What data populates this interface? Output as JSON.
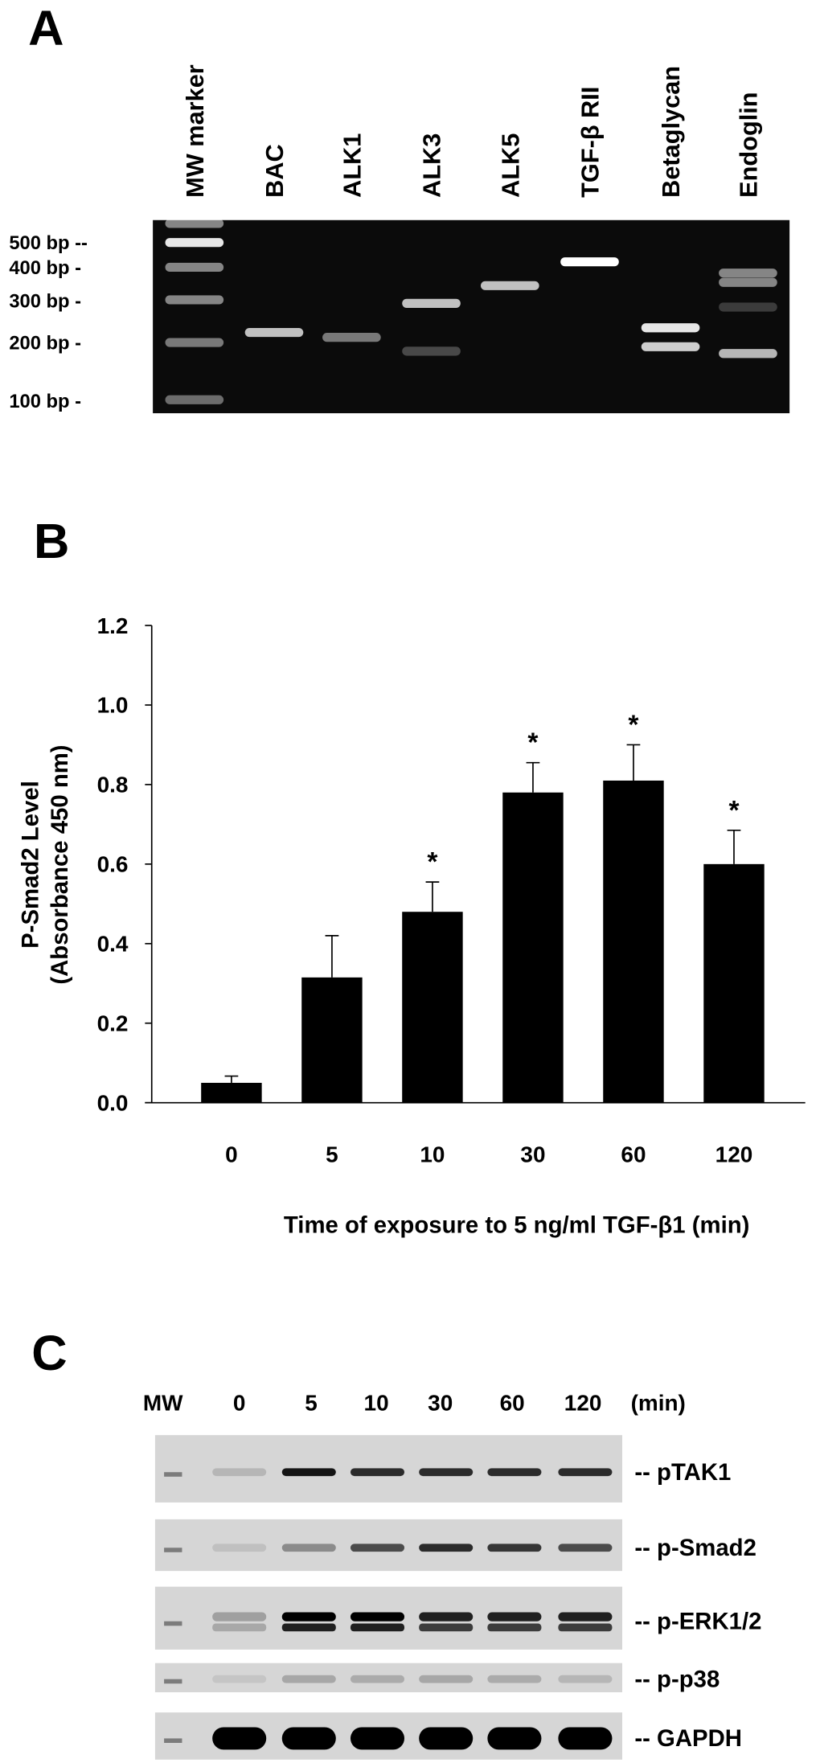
{
  "panel_a": {
    "label": "A",
    "lanes": [
      "MW marker",
      "BAC",
      "ALK1",
      "ALK3",
      "ALK5",
      "TGF-β RII",
      "Betaglycan",
      "Endoglin"
    ],
    "size_labels": [
      "500 bp --",
      "400 bp -",
      "300 bp -",
      "200 bp -",
      "100 bp -"
    ],
    "bands_bp": [
      [
        {
          "bp": 600,
          "i": 0.5
        },
        {
          "bp": 500,
          "i": 0.9
        },
        {
          "bp": 400,
          "i": 0.5
        },
        {
          "bp": 300,
          "i": 0.5
        },
        {
          "bp": 200,
          "i": 0.45
        },
        {
          "bp": 100,
          "i": 0.4
        }
      ],
      [
        {
          "bp": 220,
          "i": 0.75
        }
      ],
      [
        {
          "bp": 210,
          "i": 0.45
        }
      ],
      [
        {
          "bp": 290,
          "i": 0.75
        },
        {
          "bp": 180,
          "i": 0.25
        }
      ],
      [
        {
          "bp": 340,
          "i": 0.75
        }
      ],
      [
        {
          "bp": 420,
          "i": 1.0
        }
      ],
      [
        {
          "bp": 230,
          "i": 0.9
        },
        {
          "bp": 190,
          "i": 0.8
        }
      ],
      [
        {
          "bp": 380,
          "i": 0.5
        },
        {
          "bp": 350,
          "i": 0.5
        },
        {
          "bp": 280,
          "i": 0.2
        },
        {
          "bp": 175,
          "i": 0.7
        }
      ]
    ]
  },
  "chart_data": {
    "type": "bar",
    "panel_label": "B",
    "categories": [
      "0",
      "5",
      "10",
      "30",
      "60",
      "120"
    ],
    "values": [
      0.05,
      0.315,
      0.48,
      0.78,
      0.81,
      0.6
    ],
    "error_upper": [
      0.017,
      0.105,
      0.075,
      0.075,
      0.09,
      0.085
    ],
    "significant": [
      false,
      false,
      true,
      true,
      true,
      true
    ],
    "significance_marker": "*",
    "ylabel_lines": [
      "P-Smad2 Level",
      "(Absorbance 450 nm)"
    ],
    "xlabel": "Time of exposure to 5 ng/ml TGF-β1 (min)",
    "ylim": [
      0,
      1.2
    ],
    "yticks": [
      "0.0",
      "0.2",
      "0.4",
      "0.6",
      "0.8",
      "1.0",
      "1.2"
    ],
    "grid": false,
    "bar_color": "#000000"
  },
  "panel_c": {
    "label": "C",
    "header": [
      "MW",
      "0",
      "5",
      "10",
      "30",
      "60",
      "120",
      "(min)"
    ],
    "blots": [
      {
        "label": "-- pTAK1",
        "intensity": [
          0.15,
          0.9,
          0.8,
          0.8,
          0.8,
          0.8
        ],
        "double": false
      },
      {
        "label": "-- p-Smad2",
        "intensity": [
          0.1,
          0.35,
          0.65,
          0.8,
          0.75,
          0.65
        ],
        "double": false
      },
      {
        "label": "-- p-ERK1/2",
        "intensity": [
          0.25,
          1.0,
          1.0,
          0.85,
          0.85,
          0.85
        ],
        "double": true
      },
      {
        "label": "-- p-p38",
        "intensity": [
          0.08,
          0.22,
          0.2,
          0.22,
          0.2,
          0.15
        ],
        "double": false
      },
      {
        "label": "-- GAPDH",
        "intensity": [
          1,
          1,
          1,
          1,
          1,
          1
        ],
        "double": false
      }
    ]
  }
}
